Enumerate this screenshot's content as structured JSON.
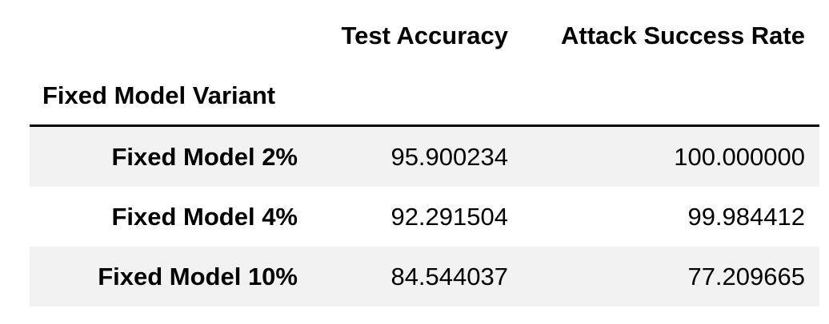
{
  "table": {
    "columns": [
      "Test Accuracy",
      "Attack Success Rate"
    ],
    "index_name": "Fixed Model Variant",
    "rows": [
      {
        "label": "Fixed Model 2%",
        "test_accuracy": "95.900234",
        "attack_success_rate": "100.000000"
      },
      {
        "label": "Fixed Model 4%",
        "test_accuracy": "92.291504",
        "attack_success_rate": "99.984412"
      },
      {
        "label": "Fixed Model 10%",
        "test_accuracy": "84.544037",
        "attack_success_rate": "77.209665"
      }
    ]
  },
  "colors": {
    "stripe": "#f2f2f2",
    "rule": "#000000",
    "text": "#000000"
  }
}
